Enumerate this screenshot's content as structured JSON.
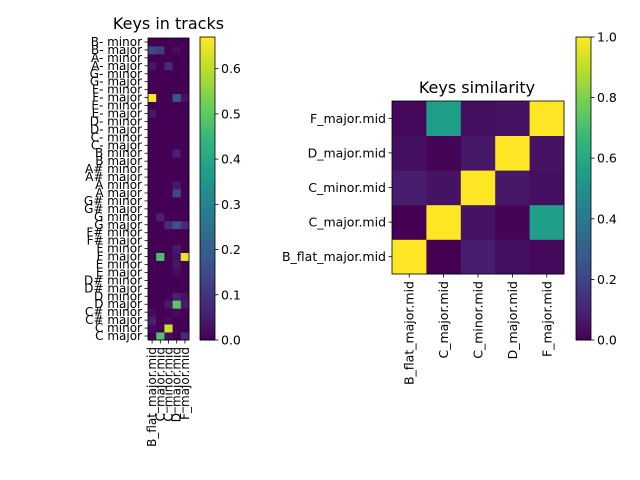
{
  "chart_data": [
    {
      "type": "heatmap",
      "title": "Keys in tracks",
      "columns": [
        "B_flat_major.mid",
        "C_major.mid",
        "C_minor.mid",
        "D_major.mid",
        "F_major.mid"
      ],
      "rows_bottom_to_top": [
        "C major",
        "C minor",
        "C# major",
        "C# minor",
        "D major",
        "D minor",
        "D# major",
        "D# minor",
        "E major",
        "E minor",
        "F major",
        "F minor",
        "F# major",
        "F# minor",
        "G major",
        "G minor",
        "G# major",
        "G# minor",
        "A major",
        "A minor",
        "A# major",
        "A# minor",
        "B major",
        "B minor",
        "C- major",
        "C- minor",
        "D- major",
        "D- minor",
        "E- major",
        "E- minor",
        "F- major",
        "F- minor",
        "G- major",
        "G- minor",
        "A- major",
        "A- minor",
        "B- major",
        "B- minor"
      ],
      "values": [
        [
          0,
          0.48,
          0.02,
          0,
          0.08
        ],
        [
          0.02,
          0,
          0.62,
          0,
          0
        ],
        [
          0.06,
          0,
          0.02,
          0,
          0
        ],
        [
          0.02,
          0,
          0,
          0.02,
          0
        ],
        [
          0,
          0,
          0.05,
          0.5,
          0.05
        ],
        [
          0,
          0,
          0,
          0.06,
          0.03
        ],
        [
          0,
          0,
          0,
          0,
          0
        ],
        [
          0,
          0,
          0,
          0,
          0
        ],
        [
          0,
          0,
          0,
          0.02,
          0
        ],
        [
          0,
          0,
          0,
          0.04,
          0
        ],
        [
          0,
          0.47,
          0,
          0.03,
          0.65
        ],
        [
          0,
          0,
          0,
          0.05,
          0
        ],
        [
          0,
          0,
          0,
          0,
          0
        ],
        [
          0,
          0,
          0,
          0,
          0
        ],
        [
          0,
          0,
          0.08,
          0.17,
          0.08
        ],
        [
          0,
          0.06,
          0,
          0,
          0
        ],
        [
          0,
          0,
          0,
          0,
          0
        ],
        [
          0,
          0,
          0,
          0,
          0
        ],
        [
          0,
          0,
          0,
          0.15,
          0
        ],
        [
          0,
          0,
          0,
          0.04,
          0
        ],
        [
          0,
          0,
          0,
          0,
          0
        ],
        [
          0,
          0,
          0,
          0,
          0
        ],
        [
          0,
          0,
          0,
          0,
          0
        ],
        [
          0,
          0,
          0,
          0.06,
          0
        ],
        [
          0,
          0,
          0,
          0,
          0
        ],
        [
          0,
          0,
          0,
          0,
          0
        ],
        [
          0,
          0,
          0,
          0,
          0
        ],
        [
          0,
          0,
          0,
          0,
          0
        ],
        [
          0.04,
          0,
          0,
          0,
          0
        ],
        [
          0,
          0,
          0,
          0,
          0
        ],
        [
          0.67,
          0,
          0,
          0.18,
          0.03
        ],
        [
          0,
          0,
          0,
          0,
          0
        ],
        [
          0,
          0,
          0,
          0,
          0
        ],
        [
          0,
          0,
          0,
          0,
          0
        ],
        [
          0.04,
          0,
          0.08,
          0,
          0
        ],
        [
          0,
          0,
          0,
          0,
          0
        ],
        [
          0.15,
          0.12,
          0,
          0.02,
          0
        ],
        [
          0,
          0,
          0,
          0,
          0
        ]
      ],
      "colorbar": {
        "min": 0,
        "max": 0.67,
        "ticks": [
          0.0,
          0.1,
          0.2,
          0.3,
          0.4,
          0.5,
          0.6
        ]
      },
      "colormap": "viridis"
    },
    {
      "type": "heatmap",
      "title": "Keys similarity",
      "columns": [
        "B_flat_major.mid",
        "C_major.mid",
        "C_minor.mid",
        "D_major.mid",
        "F_major.mid"
      ],
      "rows_bottom_to_top": [
        "B_flat_major.mid",
        "C_major.mid",
        "C_minor.mid",
        "D_major.mid",
        "F_major.mid"
      ],
      "values": [
        [
          1.0,
          0.0,
          0.08,
          0.04,
          0.02
        ],
        [
          0.0,
          1.0,
          0.05,
          0.01,
          0.56
        ],
        [
          0.08,
          0.05,
          1.0,
          0.06,
          0.04
        ],
        [
          0.04,
          0.01,
          0.06,
          1.0,
          0.05
        ],
        [
          0.02,
          0.56,
          0.04,
          0.05,
          1.0
        ]
      ],
      "colorbar": {
        "min": 0,
        "max": 1,
        "ticks": [
          0.0,
          0.2,
          0.4,
          0.6,
          0.8,
          1.0
        ]
      },
      "colormap": "viridis"
    }
  ]
}
